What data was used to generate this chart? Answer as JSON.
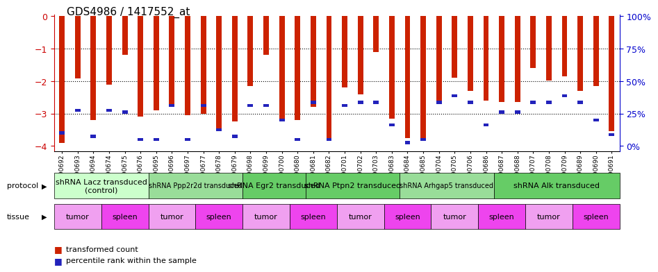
{
  "title": "GDS4986 / 1417552_at",
  "samples": [
    "GSM1290692",
    "GSM1290693",
    "GSM1290694",
    "GSM1290674",
    "GSM1290675",
    "GSM1290676",
    "GSM1290695",
    "GSM1290696",
    "GSM1290697",
    "GSM1290677",
    "GSM1290678",
    "GSM1290679",
    "GSM1290698",
    "GSM1290699",
    "GSM1290700",
    "GSM1290680",
    "GSM1290681",
    "GSM1290682",
    "GSM1290701",
    "GSM1290702",
    "GSM1290703",
    "GSM1290683",
    "GSM1290684",
    "GSM1290685",
    "GSM1290704",
    "GSM1290705",
    "GSM1290706",
    "GSM1290686",
    "GSM1290687",
    "GSM1290688",
    "GSM1290707",
    "GSM1290708",
    "GSM1290709",
    "GSM1290689",
    "GSM1290690",
    "GSM1290691"
  ],
  "red_values": [
    -3.9,
    -1.92,
    -3.2,
    -2.1,
    -1.2,
    -3.1,
    -2.9,
    -2.75,
    -3.05,
    -3.0,
    -3.5,
    -3.25,
    -2.15,
    -1.2,
    -3.15,
    -3.2,
    -2.8,
    -3.75,
    -2.2,
    -2.4,
    -1.1,
    -3.15,
    -3.75,
    -3.85,
    -2.6,
    -1.9,
    -2.3,
    -2.6,
    -2.65,
    -2.65,
    -1.6,
    -1.98,
    -1.85,
    -2.3,
    -2.15,
    -3.55
  ],
  "blue_positions": [
    -3.6,
    -2.9,
    -3.7,
    -2.9,
    -2.95,
    -3.8,
    -3.8,
    -2.75,
    -3.8,
    -2.75,
    -3.5,
    -3.7,
    -2.75,
    -2.75,
    -3.2,
    -3.8,
    -2.65,
    -3.8,
    -2.75,
    -2.65,
    -2.65,
    -3.35,
    -3.9,
    -3.8,
    -2.65,
    -2.45,
    -2.65,
    -3.35,
    -2.95,
    -2.95,
    -2.65,
    -2.65,
    -2.45,
    -2.65,
    -3.2,
    -3.65
  ],
  "protocols": [
    {
      "label": "shRNA Lacz transduced\n(control)",
      "start": 0,
      "end": 6,
      "color": "#ccffcc",
      "fontsize": 8
    },
    {
      "label": "shRNA Ppp2r2d transduced",
      "start": 6,
      "end": 12,
      "color": "#99dd99",
      "fontsize": 7
    },
    {
      "label": "shRNA Egr2 transduced",
      "start": 12,
      "end": 16,
      "color": "#66cc66",
      "fontsize": 8
    },
    {
      "label": "shRNA Ptpn2 transduced",
      "start": 16,
      "end": 22,
      "color": "#66cc66",
      "fontsize": 8
    },
    {
      "label": "shRNA Arhgap5 transduced",
      "start": 22,
      "end": 28,
      "color": "#99dd99",
      "fontsize": 7
    },
    {
      "label": "shRNA Alk transduced",
      "start": 28,
      "end": 36,
      "color": "#66cc66",
      "fontsize": 8
    }
  ],
  "tissues": [
    {
      "label": "tumor",
      "start": 0,
      "end": 3
    },
    {
      "label": "spleen",
      "start": 3,
      "end": 6
    },
    {
      "label": "tumor",
      "start": 6,
      "end": 9
    },
    {
      "label": "spleen",
      "start": 9,
      "end": 12
    },
    {
      "label": "tumor",
      "start": 12,
      "end": 15
    },
    {
      "label": "spleen",
      "start": 15,
      "end": 18
    },
    {
      "label": "tumor",
      "start": 18,
      "end": 21
    },
    {
      "label": "spleen",
      "start": 21,
      "end": 24
    },
    {
      "label": "tumor",
      "start": 24,
      "end": 27
    },
    {
      "label": "spleen",
      "start": 27,
      "end": 30
    },
    {
      "label": "tumor",
      "start": 30,
      "end": 33
    },
    {
      "label": "spleen",
      "start": 33,
      "end": 36
    }
  ],
  "ylim": [
    -4.15,
    0.05
  ],
  "yticks": [
    -4,
    -3,
    -2,
    -1,
    0
  ],
  "bar_color": "#cc2200",
  "blue_color": "#2222bb",
  "bg_color": "#ffffff",
  "title_fontsize": 11,
  "tick_fontsize": 6.5,
  "left_color": "#cc0000",
  "right_color": "#0000cc",
  "n_samples": 36
}
